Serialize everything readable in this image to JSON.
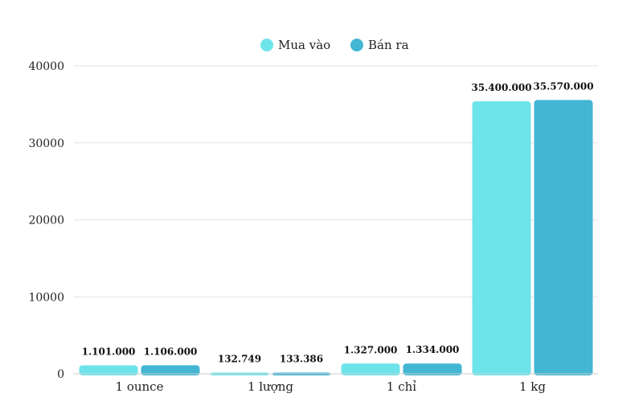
{
  "chart_data": {
    "type": "bar",
    "categories": [
      "1 ounce",
      "1 lượng",
      "1 chỉ",
      "1 kg"
    ],
    "series": [
      {
        "name": "Mua vào",
        "color": "#6de4ea",
        "values": [
          1101,
          132.749,
          1327,
          35400
        ],
        "labels": [
          "1.101.000",
          "132.749",
          "1.327.000",
          "35.400.000"
        ]
      },
      {
        "name": "Bán ra",
        "color": "#42b6d3",
        "values": [
          1106,
          133.386,
          1334,
          35570
        ],
        "labels": [
          "1.106.000",
          "133.386",
          "1.334.000",
          "35.570.000"
        ]
      }
    ],
    "ylim": [
      0,
      40000
    ],
    "yticks": [
      "0",
      "10000",
      "20000",
      "30000",
      "40000"
    ],
    "grid": true,
    "legend_position": "top-center"
  }
}
